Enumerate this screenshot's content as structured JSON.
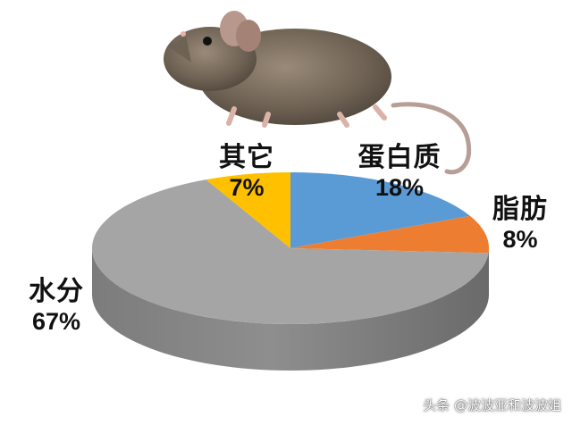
{
  "chart_data": {
    "type": "pie",
    "title": "",
    "slices": [
      {
        "label": "蛋白质",
        "value": 18,
        "display": "18%",
        "color": "#5b9bd5"
      },
      {
        "label": "脂肪",
        "value": 8,
        "display": "8%",
        "color": "#ed7d31"
      },
      {
        "label": "水分",
        "value": 67,
        "display": "67%",
        "color": "#a5a5a5"
      },
      {
        "label": "其它",
        "value": 7,
        "display": "7%",
        "color": "#ffc000"
      }
    ]
  },
  "watermark": "头条 @波波亚和波波姐",
  "illustration": "rat"
}
